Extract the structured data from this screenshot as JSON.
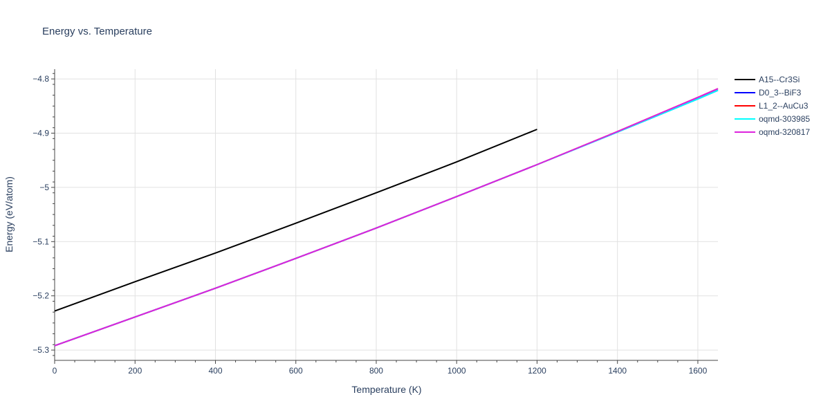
{
  "chart_data": {
    "type": "line",
    "title": "Energy vs. Temperature",
    "xlabel": "Temperature (K)",
    "ylabel": "Energy (eV/atom)",
    "xlim": [
      0,
      1650
    ],
    "ylim": [
      -5.319,
      -4.782
    ],
    "x_ticks": [
      0,
      200,
      400,
      600,
      800,
      1000,
      1200,
      1400,
      1600
    ],
    "x_tick_labels": [
      "0",
      "200",
      "400",
      "600",
      "800",
      "1000",
      "1200",
      "1400",
      "1600"
    ],
    "y_ticks": [
      -4.8,
      -4.9,
      -5.0,
      -5.1,
      -5.2,
      -5.3
    ],
    "y_tick_labels": [
      "−4.8",
      "−4.9",
      "−5",
      "−5.1",
      "−5.2",
      "−5.3"
    ],
    "grid": true,
    "legend_position": "right",
    "series": [
      {
        "name": "A15--Cr3Si",
        "color": "#000000",
        "x": [
          0,
          200,
          400,
          600,
          800,
          1000,
          1200
        ],
        "y": [
          -5.228,
          -5.174,
          -5.121,
          -5.066,
          -5.01,
          -4.953,
          -4.893
        ]
      },
      {
        "name": "D0_3--BiF3",
        "color": "#0000ff",
        "x": [
          0,
          200,
          400,
          600,
          800,
          1000,
          1200,
          1400,
          1600,
          1650
        ],
        "y": [
          -5.292,
          -5.239,
          -5.186,
          -5.131,
          -5.075,
          -5.017,
          -4.958,
          -4.898,
          -4.837,
          -4.821
        ]
      },
      {
        "name": "L1_2--AuCu3",
        "color": "#ff0000",
        "x": [
          0,
          200,
          400,
          600,
          800,
          1000,
          1200,
          1400,
          1600,
          1650
        ],
        "y": [
          -5.292,
          -5.239,
          -5.186,
          -5.131,
          -5.075,
          -5.017,
          -4.958,
          -4.897,
          -4.834,
          -4.818
        ]
      },
      {
        "name": "oqmd-303985",
        "color": "#00ffff",
        "x": [
          0,
          200,
          400,
          600,
          800,
          1000,
          1200,
          1400,
          1600,
          1650
        ],
        "y": [
          -5.292,
          -5.239,
          -5.186,
          -5.131,
          -5.075,
          -5.017,
          -4.958,
          -4.898,
          -4.837,
          -4.821
        ]
      },
      {
        "name": "oqmd-320817",
        "color": "#dd22dd",
        "x": [
          0,
          200,
          400,
          600,
          800,
          1000,
          1200,
          1400,
          1600,
          1650
        ],
        "y": [
          -5.292,
          -5.239,
          -5.186,
          -5.131,
          -5.075,
          -5.017,
          -4.958,
          -4.897,
          -4.834,
          -4.818
        ]
      }
    ]
  }
}
